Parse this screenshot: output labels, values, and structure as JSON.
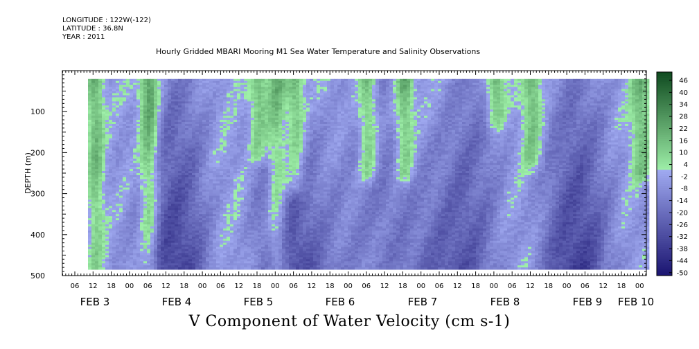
{
  "header": {
    "longitude": "LONGITUDE : 122W(-122)",
    "latitude": "LATITUDE : 36.8N",
    "year": "YEAR : 2011"
  },
  "chart_data": {
    "type": "heatmap",
    "title": "Hourly Gridded MBARI Mooring M1 Sea Water Temperature and Salinity Observations",
    "xlabel": "V Component of Water Velocity (cm s-1)",
    "ylabel": "DEPTH (m)",
    "ylim": [
      500,
      0
    ],
    "y_ticks": [
      100,
      200,
      300,
      400,
      500
    ],
    "y_tick_labels": [
      "100",
      "200",
      "300",
      "400",
      "500"
    ],
    "data_depth_range_m": [
      20,
      485
    ],
    "hour_ticks": [
      "06",
      "12",
      "18",
      "00",
      "06",
      "12",
      "18",
      "00",
      "06",
      "12",
      "18",
      "00",
      "06",
      "12",
      "18",
      "00",
      "06",
      "12",
      "18",
      "00",
      "06",
      "12",
      "18",
      "00",
      "06",
      "12",
      "18",
      "00",
      "06",
      "12",
      "18",
      "00"
    ],
    "day_labels": [
      "FEB 3",
      "FEB 4",
      "FEB 5",
      "FEB 6",
      "FEB 7",
      "FEB 8",
      "FEB 9",
      "FEB 10"
    ],
    "colorbar": {
      "min": -50,
      "max": 49,
      "labels": [
        "46",
        "40",
        "34",
        "28",
        "22",
        "16",
        "10",
        "4",
        "-2",
        "-8",
        "-14",
        "-20",
        "-26",
        "-32",
        "-38",
        "-44",
        "-50"
      ],
      "color_low": "#1a1470",
      "color_mid_low": "#9fa9f0",
      "color_mid_high": "#9ff0a9",
      "color_high": "#0f4a1f"
    },
    "value_range_cm_s": [
      -30,
      25
    ],
    "dominant_pattern": "alternating vertical bands of positive (green, up to ~20) and negative (blue, down to ~-30) velocity, strongest positive near surface",
    "positive_events": [
      {
        "time": "FEB 3 12",
        "depth_range": [
          20,
          480
        ],
        "peak": 18
      },
      {
        "time": "FEB 4 06",
        "depth_range": [
          20,
          480
        ],
        "peak": 20
      },
      {
        "time": "FEB 5 00",
        "depth_range": [
          20,
          480
        ],
        "peak": 20
      },
      {
        "time": "FEB 5 18",
        "depth_range": [
          20,
          200
        ],
        "peak": 16
      },
      {
        "time": "FEB 6 06",
        "depth_range": [
          20,
          280
        ],
        "peak": 18
      },
      {
        "time": "FEB 7 06",
        "depth_range": [
          20,
          250
        ],
        "peak": 16
      },
      {
        "time": "FEB 7 18",
        "depth_range": [
          20,
          250
        ],
        "peak": 16
      },
      {
        "time": "FEB 8 00",
        "depth_range": [
          20,
          120
        ],
        "peak": 18
      },
      {
        "time": "FEB 9 12",
        "depth_range": [
          20,
          220
        ],
        "peak": 10
      },
      {
        "time": "FEB 10 00",
        "depth_range": [
          20,
          250
        ],
        "peak": 12
      }
    ]
  }
}
